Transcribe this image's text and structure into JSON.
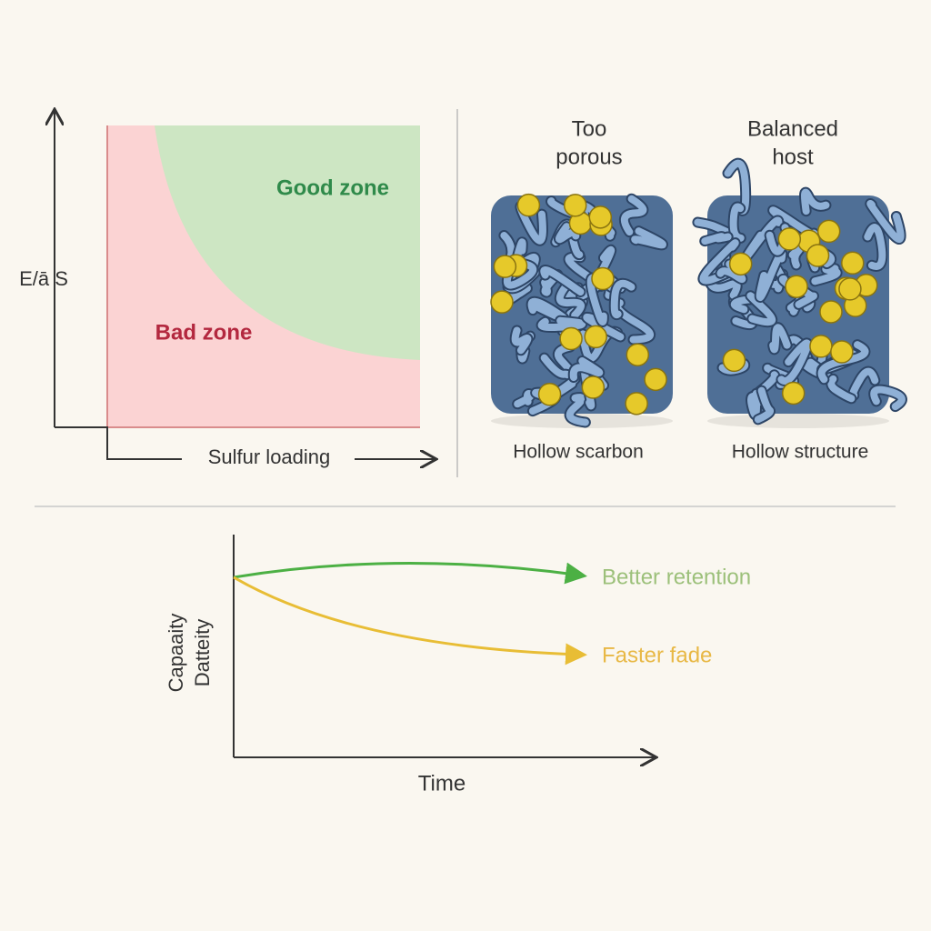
{
  "zone_plot": {
    "y_label": "E/ā S",
    "x_label": "Sulfur loading",
    "good_label": "Good zone",
    "bad_label": "Bad zone"
  },
  "hosts": [
    {
      "title_lines": [
        "Too",
        "porous"
      ],
      "caption": "Hollow scarbon"
    },
    {
      "title_lines": [
        "Balanced",
        "host"
      ],
      "caption": "Hollow structure"
    }
  ],
  "retention_plot": {
    "y_label_lines": [
      "Capaaity",
      "Datteity"
    ],
    "x_label": "Time",
    "better_label": "Better retention",
    "worse_label": "Faster fade"
  }
}
